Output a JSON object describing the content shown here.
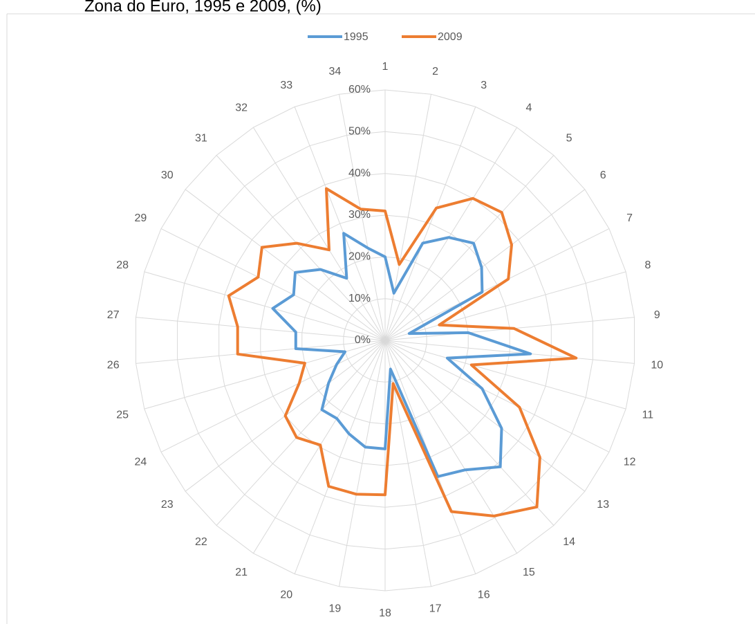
{
  "chart_data": {
    "type": "radar",
    "title": "Zona do Euro, 1995 e 2009, (%)",
    "categories": [
      "1",
      "2",
      "3",
      "4",
      "5",
      "6",
      "7",
      "8",
      "9",
      "10",
      "11",
      "12",
      "13",
      "14",
      "15",
      "16",
      "17",
      "18",
      "19",
      "20",
      "21",
      "22",
      "23",
      "24",
      "25",
      "26",
      "27",
      "28",
      "29",
      "30",
      "31",
      "32",
      "33",
      "34"
    ],
    "series": [
      {
        "name": "1995",
        "color": "#5b9bd5",
        "values": [
          20,
          11.5,
          25,
          29,
          31.5,
          29,
          26,
          6,
          20,
          35,
          15.5,
          26,
          35,
          41,
          36.5,
          35,
          7,
          26,
          26,
          24,
          22,
          22.5,
          17,
          13,
          10,
          21.5,
          21.5,
          28,
          24.5,
          27,
          23,
          17.5,
          27.5,
          22.5
        ]
      },
      {
        "name": "2009",
        "color": "#ed7d31",
        "values": [
          31,
          18.5,
          34,
          40,
          41.5,
          38,
          33,
          13.5,
          31,
          46,
          21.5,
          36,
          46.5,
          54,
          49.5,
          44,
          10.5,
          37,
          37.5,
          37.5,
          29.5,
          31.5,
          30,
          23,
          20,
          35.5,
          35.5,
          39,
          34,
          37,
          31.5,
          25.5,
          39,
          32
        ]
      }
    ],
    "ylim": [
      0,
      60
    ],
    "yticks": [
      {
        "value": 0,
        "label": "0%"
      },
      {
        "value": 10,
        "label": "10%"
      },
      {
        "value": 20,
        "label": "20%"
      },
      {
        "value": 30,
        "label": "30%"
      },
      {
        "value": 40,
        "label": "40%"
      },
      {
        "value": 50,
        "label": "50%"
      },
      {
        "value": 60,
        "label": "60%"
      }
    ],
    "grid": true,
    "legend": "top"
  }
}
